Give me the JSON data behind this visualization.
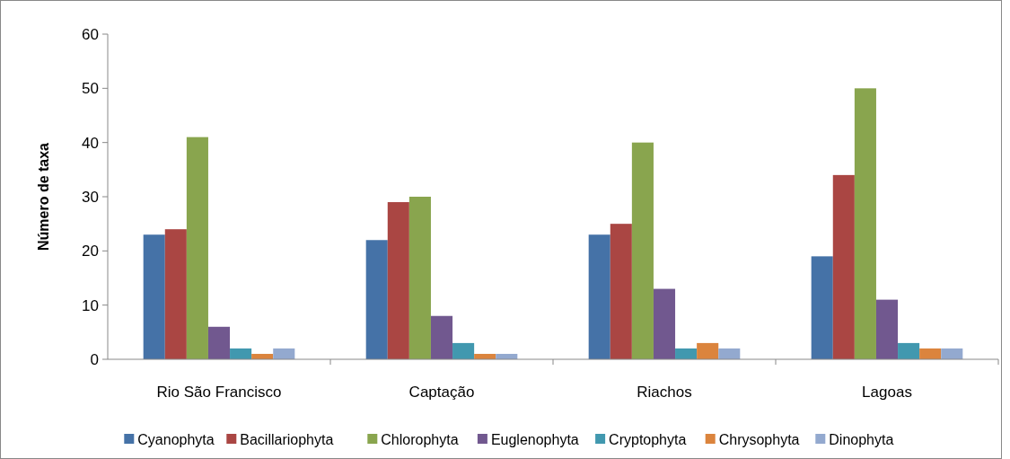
{
  "chart_data": {
    "type": "bar",
    "ylabel": "Número de taxa",
    "categories": [
      "Rio São Francisco",
      "Captação",
      "Riachos",
      "Lagoas"
    ],
    "series": [
      {
        "name": "Cyanophyta",
        "color": "#4572a7",
        "values": [
          23,
          22,
          23,
          19
        ]
      },
      {
        "name": "Bacillariophyta",
        "color": "#aa4643",
        "values": [
          24,
          29,
          25,
          34
        ]
      },
      {
        "name": "Chlorophyta",
        "color": "#89a54e",
        "values": [
          41,
          30,
          40,
          50
        ]
      },
      {
        "name": "Euglenophyta",
        "color": "#71588f",
        "values": [
          6,
          8,
          13,
          11
        ]
      },
      {
        "name": "Cryptophyta",
        "color": "#4198af",
        "values": [
          2,
          3,
          2,
          3
        ]
      },
      {
        "name": "Chrysophyta",
        "color": "#db843d",
        "values": [
          1,
          1,
          3,
          2
        ]
      },
      {
        "name": "Dinophyta",
        "color": "#93a9cf",
        "values": [
          2,
          1,
          2,
          2
        ]
      }
    ],
    "ylim": [
      0,
      60
    ],
    "yticks": [
      0,
      10,
      20,
      30,
      40,
      50,
      60
    ],
    "grid": false,
    "legend": "bottom"
  }
}
